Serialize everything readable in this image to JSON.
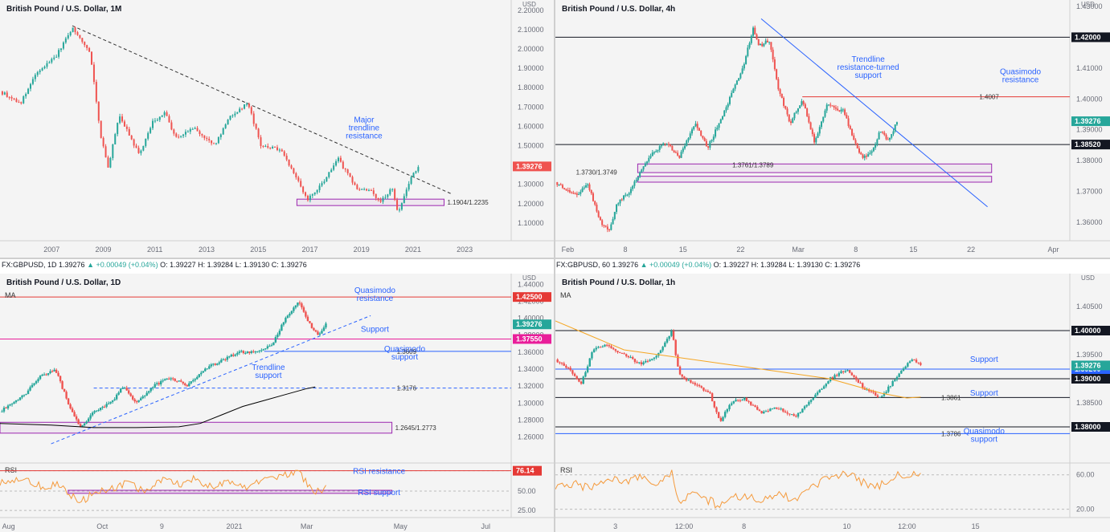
{
  "colors": {
    "up": "#26a69a",
    "down": "#ef5350",
    "trend": "#2962ff",
    "blue_text": "#2962ff",
    "purple": "#9c27b0",
    "black": "#131722",
    "rsi": "#f59a3c",
    "ma_black": "#000000",
    "ma_orange": "#f5a623",
    "magenta": "#e91e9a",
    "red_line": "#e53935"
  },
  "info_bars": [
    {
      "symbol": "FX:GBPUSD, 1D",
      "price": "1.39276",
      "change": "▲ +0.00049 (+0.04%)",
      "o": "O: 1.39227",
      "h": "H: 1.39284",
      "l": "L: 1.39130",
      "c": "C: 1.39276"
    },
    {
      "symbol": "FX:GBPUSD, 60",
      "price": "1.39276",
      "change": "▲ +0.00049 (+0.04%)",
      "o": "O: 1.39227",
      "h": "H: 1.39284",
      "l": "L: 1.39130",
      "c": "C: 1.39276"
    }
  ],
  "chart_data": [
    {
      "id": "monthly",
      "type": "candlestick",
      "title": "British Pound / U.S. Dollar, 1M",
      "ylim": [
        1.05,
        2.22
      ],
      "xlim": [
        2005.0,
        2024.8
      ],
      "y_ticks": [
        "2.20000",
        "2.10000",
        "2.00000",
        "1.90000",
        "1.80000",
        "1.70000",
        "1.60000",
        "1.50000",
        "1.40000",
        "1.30000",
        "1.20000",
        "1.10000"
      ],
      "y_tick_values": [
        2.2,
        2.1,
        2.0,
        1.9,
        1.8,
        1.7,
        1.6,
        1.5,
        1.4,
        1.3,
        1.2,
        1.1
      ],
      "x_ticks": [
        "2007",
        "2009",
        "2011",
        "2013",
        "2015",
        "2017",
        "2019",
        "2021",
        "2023"
      ],
      "x_tick_values": [
        2007,
        2009,
        2011,
        2013,
        2015,
        2017,
        2019,
        2021,
        2023
      ],
      "price_path": [
        [
          2005.0,
          1.78
        ],
        [
          2005.8,
          1.72
        ],
        [
          2006.4,
          1.87
        ],
        [
          2007.2,
          1.97
        ],
        [
          2007.8,
          2.11
        ],
        [
          2008.5,
          1.98
        ],
        [
          2008.9,
          1.55
        ],
        [
          2009.2,
          1.38
        ],
        [
          2009.6,
          1.66
        ],
        [
          2010.4,
          1.45
        ],
        [
          2010.9,
          1.62
        ],
        [
          2011.4,
          1.67
        ],
        [
          2011.8,
          1.54
        ],
        [
          2012.5,
          1.59
        ],
        [
          2013.3,
          1.5
        ],
        [
          2013.9,
          1.65
        ],
        [
          2014.6,
          1.72
        ],
        [
          2015.1,
          1.5
        ],
        [
          2015.9,
          1.48
        ],
        [
          2016.5,
          1.33
        ],
        [
          2016.9,
          1.22
        ],
        [
          2017.4,
          1.29
        ],
        [
          2018.1,
          1.43
        ],
        [
          2018.8,
          1.28
        ],
        [
          2019.4,
          1.26
        ],
        [
          2019.7,
          1.21
        ],
        [
          2020.2,
          1.28
        ],
        [
          2020.4,
          1.15
        ],
        [
          2020.9,
          1.33
        ],
        [
          2021.2,
          1.39
        ]
      ],
      "last_price": "1.39276",
      "last_price_value": 1.39276,
      "trendline": [
        [
          2007.8,
          2.12
        ],
        [
          2022.5,
          1.25
        ]
      ],
      "zones": [
        {
          "x0": 2016.5,
          "x1": 2022.2,
          "y0": 1.1904,
          "y1": 1.2235,
          "label": "1.1904/1.2235"
        }
      ],
      "annotations": [
        {
          "text": [
            "Major",
            "trendline",
            "resistance"
          ],
          "x": 2019.1,
          "y": 1.62
        }
      ],
      "axis_label": "USD"
    },
    {
      "id": "h4",
      "type": "candlestick",
      "title": "British Pound / U.S. Dollar, 4h",
      "ylim": [
        1.354,
        1.43
      ],
      "xlim": [
        -1.5,
        61
      ],
      "y_ticks": [
        "1.43000",
        "1.42000",
        "1.41000",
        "1.40000",
        "1.39000",
        "1.38000",
        "1.37000",
        "1.36000"
      ],
      "y_tick_values": [
        1.43,
        1.42,
        1.41,
        1.4,
        1.39,
        1.38,
        1.37,
        1.36
      ],
      "x_ticks": [
        "Feb",
        "8",
        "15",
        "22",
        "Mar",
        "8",
        "15",
        "22",
        "Apr"
      ],
      "x_tick_values": [
        0,
        7,
        14,
        21,
        28,
        35,
        42,
        49,
        59
      ],
      "price_path": [
        [
          -1.5,
          1.373
        ],
        [
          1.0,
          1.369
        ],
        [
          2.5,
          1.372
        ],
        [
          4.0,
          1.36
        ],
        [
          5.0,
          1.357
        ],
        [
          6.0,
          1.366
        ],
        [
          7.5,
          1.37
        ],
        [
          8.5,
          1.375
        ],
        [
          10.5,
          1.383
        ],
        [
          12.0,
          1.386
        ],
        [
          13.5,
          1.381
        ],
        [
          15.5,
          1.392
        ],
        [
          17.0,
          1.384
        ],
        [
          18.5,
          1.393
        ],
        [
          20.0,
          1.402
        ],
        [
          21.5,
          1.412
        ],
        [
          22.5,
          1.423
        ],
        [
          23.2,
          1.417
        ],
        [
          24.5,
          1.419
        ],
        [
          25.5,
          1.404
        ],
        [
          27.0,
          1.392
        ],
        [
          28.5,
          1.4
        ],
        [
          30.0,
          1.386
        ],
        [
          31.5,
          1.398
        ],
        [
          33.5,
          1.396
        ],
        [
          35.0,
          1.385
        ],
        [
          35.8,
          1.381
        ],
        [
          37.0,
          1.383
        ],
        [
          38.0,
          1.39
        ],
        [
          39.0,
          1.386
        ],
        [
          40.0,
          1.393
        ]
      ],
      "last_price": "1.39276",
      "last_price_value": 1.39276,
      "levels": [
        {
          "value": 1.42,
          "label": "1.42000",
          "color": "#131722",
          "x0": -1.5
        },
        {
          "value": 1.3852,
          "label": "1.38520",
          "color": "#131722",
          "x0": -1.5
        },
        {
          "value": 1.4007,
          "label": "1.4007",
          "color": "#e53935",
          "x0": 28.5
        }
      ],
      "trendline": [
        [
          23.5,
          1.426
        ],
        [
          51.0,
          1.365
        ]
      ],
      "zones": [
        {
          "x0": 8.5,
          "x1": 51.5,
          "y0": 1.3761,
          "y1": 1.3789,
          "label": "1.3761/1.3789"
        },
        {
          "x0": 8.5,
          "x1": 51.5,
          "y0": 1.373,
          "y1": 1.3749,
          "label": "1.3730/1.3749"
        }
      ],
      "annotations": [
        {
          "text": [
            "Trendline",
            "resistance-turned",
            "support"
          ],
          "x": 36.5,
          "y": 1.412
        },
        {
          "text": [
            "Quasimodo",
            "resistance"
          ],
          "x": 55.0,
          "y": 1.408
        }
      ],
      "axis_label": "USD"
    },
    {
      "id": "daily",
      "type": "candlestick",
      "title": "British Pound / U.S. Dollar, 1D",
      "ylim": [
        1.235,
        1.445
      ],
      "xlim": [
        -0.2,
        11.8
      ],
      "y_ticks": [
        "1.44000",
        "1.42000",
        "1.40000",
        "1.38000",
        "1.36000",
        "1.34000",
        "1.32000",
        "1.30000",
        "1.28000",
        "1.26000"
      ],
      "y_tick_values": [
        1.44,
        1.42,
        1.4,
        1.38,
        1.36,
        1.34,
        1.32,
        1.3,
        1.28,
        1.26
      ],
      "x_ticks": [
        "Aug",
        "Oct",
        "9",
        "2021",
        "Mar",
        "May",
        "Jul"
      ],
      "x_tick_values": [
        0,
        2.2,
        3.6,
        5.3,
        7.0,
        9.2,
        11.2
      ],
      "price_path": [
        [
          -0.2,
          1.29
        ],
        [
          0.4,
          1.31
        ],
        [
          0.7,
          1.33
        ],
        [
          1.1,
          1.34
        ],
        [
          1.4,
          1.3
        ],
        [
          1.7,
          1.27
        ],
        [
          2.0,
          1.29
        ],
        [
          2.4,
          1.3
        ],
        [
          2.7,
          1.32
        ],
        [
          3.0,
          1.3
        ],
        [
          3.4,
          1.32
        ],
        [
          3.8,
          1.33
        ],
        [
          4.2,
          1.32
        ],
        [
          4.6,
          1.34
        ],
        [
          5.0,
          1.35
        ],
        [
          5.4,
          1.36
        ],
        [
          5.8,
          1.36
        ],
        [
          6.2,
          1.37
        ],
        [
          6.5,
          1.4
        ],
        [
          6.8,
          1.42
        ],
        [
          7.1,
          1.39
        ],
        [
          7.3,
          1.38
        ],
        [
          7.45,
          1.393
        ]
      ],
      "last_price": "1.39276",
      "last_price_value": 1.39276,
      "levels": [
        {
          "value": 1.425,
          "label": "1.42500",
          "color": "#e53935",
          "x0": -0.2
        },
        {
          "value": 1.3755,
          "label": "1.37550",
          "color": "#e91e9a",
          "x0": -0.2
        },
        {
          "value": 1.3609,
          "label": "1.3609",
          "color": "#2962ff",
          "x0": 6.0
        },
        {
          "value": 1.3176,
          "label": "1.3176",
          "color": "#2962ff",
          "x0": 2.0,
          "dashed": true
        }
      ],
      "trendline": [
        [
          1.0,
          1.252
        ],
        [
          8.5,
          1.403
        ]
      ],
      "ma": [
        [
          -0.2,
          1.276
        ],
        [
          1.0,
          1.274
        ],
        [
          2.0,
          1.271
        ],
        [
          3.0,
          1.271
        ],
        [
          4.0,
          1.272
        ],
        [
          4.5,
          1.276
        ],
        [
          5.0,
          1.286
        ],
        [
          5.5,
          1.296
        ],
        [
          6.0,
          1.303
        ],
        [
          6.5,
          1.31
        ],
        [
          7.0,
          1.317
        ],
        [
          7.2,
          1.319
        ]
      ],
      "zones": [
        {
          "x0": -0.2,
          "x1": 9.0,
          "y0": 1.2645,
          "y1": 1.2773,
          "label": "1.2645/1.2773"
        }
      ],
      "annotations": [
        {
          "text": [
            "Quasimodo",
            "resistance"
          ],
          "x": 8.6,
          "y": 1.43
        },
        {
          "text": [
            "Support"
          ],
          "x": 8.6,
          "y": 1.384
        },
        {
          "text": [
            "Quasimodo",
            "support"
          ],
          "x": 9.3,
          "y": 1.361
        },
        {
          "text": [
            "Trendline",
            "support"
          ],
          "x": 6.1,
          "y": 1.339
        }
      ],
      "indicator_label": "MA",
      "rsi": {
        "label": "RSI",
        "ylim": [
          20,
          82
        ],
        "y_ticks": [
          "76.14",
          "50.00",
          "25.00"
        ],
        "y_tick_values": [
          76.14,
          50,
          25
        ],
        "resistance": 76.14,
        "support_zone": [
          47,
          51
        ],
        "support_x": [
          1.4,
          9.0
        ],
        "path": [
          [
            -0.2,
            62
          ],
          [
            0.4,
            66
          ],
          [
            0.8,
            55
          ],
          [
            1.2,
            58
          ],
          [
            1.5,
            44
          ],
          [
            1.7,
            36
          ],
          [
            2.0,
            48
          ],
          [
            2.4,
            52
          ],
          [
            2.8,
            60
          ],
          [
            3.2,
            50
          ],
          [
            3.6,
            64
          ],
          [
            4.0,
            58
          ],
          [
            4.4,
            66
          ],
          [
            4.8,
            54
          ],
          [
            5.2,
            62
          ],
          [
            5.6,
            56
          ],
          [
            6.0,
            64
          ],
          [
            6.4,
            70
          ],
          [
            6.8,
            77
          ],
          [
            7.1,
            52
          ],
          [
            7.3,
            50
          ],
          [
            7.45,
            56
          ]
        ],
        "annotations": [
          {
            "text": "RSI resistance",
            "x": 8.7,
            "y": 72
          },
          {
            "text": "RSI support",
            "x": 8.7,
            "y": 45
          }
        ]
      },
      "axis_label": "USD"
    },
    {
      "id": "h1",
      "type": "candlestick",
      "title": "British Pound / U.S. Dollar, 1h",
      "ylim": [
        1.3735,
        1.4085
      ],
      "xlim": [
        0,
        30
      ],
      "y_ticks": [
        "1.40500",
        "1.40000",
        "1.39500",
        "1.39000",
        "1.38500",
        "1.38000"
      ],
      "y_tick_values": [
        1.405,
        1.4,
        1.395,
        1.39,
        1.385,
        1.38
      ],
      "x_ticks": [
        "3",
        "12:00",
        "8",
        "10",
        "12:00",
        "15"
      ],
      "x_tick_values": [
        3.5,
        7.5,
        11.0,
        17.0,
        20.5,
        24.5
      ],
      "price_path": [
        [
          0,
          1.394
        ],
        [
          0.8,
          1.392
        ],
        [
          1.5,
          1.389
        ],
        [
          2.2,
          1.396
        ],
        [
          3.0,
          1.397
        ],
        [
          4.0,
          1.395
        ],
        [
          5.0,
          1.393
        ],
        [
          6.0,
          1.395
        ],
        [
          6.8,
          1.4
        ],
        [
          7.2,
          1.391
        ],
        [
          8.0,
          1.389
        ],
        [
          9.0,
          1.387
        ],
        [
          9.6,
          1.381
        ],
        [
          10.2,
          1.385
        ],
        [
          11.0,
          1.386
        ],
        [
          12.0,
          1.383
        ],
        [
          13.0,
          1.384
        ],
        [
          14.0,
          1.382
        ],
        [
          15.0,
          1.386
        ],
        [
          16.0,
          1.39
        ],
        [
          17.0,
          1.392
        ],
        [
          18.0,
          1.388
        ],
        [
          19.0,
          1.386
        ],
        [
          20.0,
          1.391
        ],
        [
          20.8,
          1.394
        ],
        [
          21.3,
          1.3928
        ]
      ],
      "last_price": "1.39276",
      "last_price_value": 1.39276,
      "levels": [
        {
          "value": 1.4,
          "label": "1.40000",
          "color": "#131722",
          "x0": 0
        },
        {
          "value": 1.392,
          "label": "1.39200",
          "color": "#2962ff",
          "x0": 0
        },
        {
          "value": 1.39,
          "label": "1.39000",
          "color": "#131722",
          "x0": 0
        },
        {
          "value": 1.3861,
          "label": "1.3861",
          "color": "#131722",
          "x0": 0
        },
        {
          "value": 1.38,
          "label": "1.38000",
          "color": "#131722",
          "x0": 0
        },
        {
          "value": 1.3786,
          "label": "1.3786",
          "color": "#2962ff",
          "x0": 0
        }
      ],
      "ma": [
        [
          0,
          1.402
        ],
        [
          2.0,
          1.399
        ],
        [
          4.0,
          1.396
        ],
        [
          6.0,
          1.395
        ],
        [
          8.0,
          1.394
        ],
        [
          10.0,
          1.393
        ],
        [
          12.0,
          1.392
        ],
        [
          14.0,
          1.391
        ],
        [
          16.0,
          1.39
        ],
        [
          17.5,
          1.3885
        ],
        [
          19.0,
          1.387
        ],
        [
          20.5,
          1.386
        ],
        [
          21.3,
          1.3862
        ]
      ],
      "annotations": [
        {
          "text": [
            "Support"
          ],
          "x": 25.0,
          "y": 1.3935
        },
        {
          "text": [
            "Support"
          ],
          "x": 25.0,
          "y": 1.3865
        },
        {
          "text": [
            "Quasimodo",
            "support"
          ],
          "x": 25.0,
          "y": 1.3786
        }
      ],
      "indicator_label": "MA",
      "rsi": {
        "label": "RSI",
        "ylim": [
          14,
          70
        ],
        "y_ticks": [
          "60.00",
          "20.00"
        ],
        "y_tick_values": [
          60,
          20
        ],
        "path": [
          [
            0,
            48
          ],
          [
            1.0,
            50
          ],
          [
            2.0,
            44
          ],
          [
            3.0,
            56
          ],
          [
            4.0,
            52
          ],
          [
            5.0,
            58
          ],
          [
            6.0,
            50
          ],
          [
            6.8,
            62
          ],
          [
            7.2,
            30
          ],
          [
            8.0,
            36
          ],
          [
            9.0,
            30
          ],
          [
            9.6,
            22
          ],
          [
            10.2,
            32
          ],
          [
            11.0,
            36
          ],
          [
            12.0,
            30
          ],
          [
            13.0,
            40
          ],
          [
            14.0,
            30
          ],
          [
            15.0,
            48
          ],
          [
            16.0,
            56
          ],
          [
            17.0,
            62
          ],
          [
            18.0,
            50
          ],
          [
            19.0,
            48
          ],
          [
            20.0,
            60
          ],
          [
            20.8,
            62
          ],
          [
            21.3,
            60
          ]
        ]
      },
      "axis_label": "USD"
    }
  ]
}
